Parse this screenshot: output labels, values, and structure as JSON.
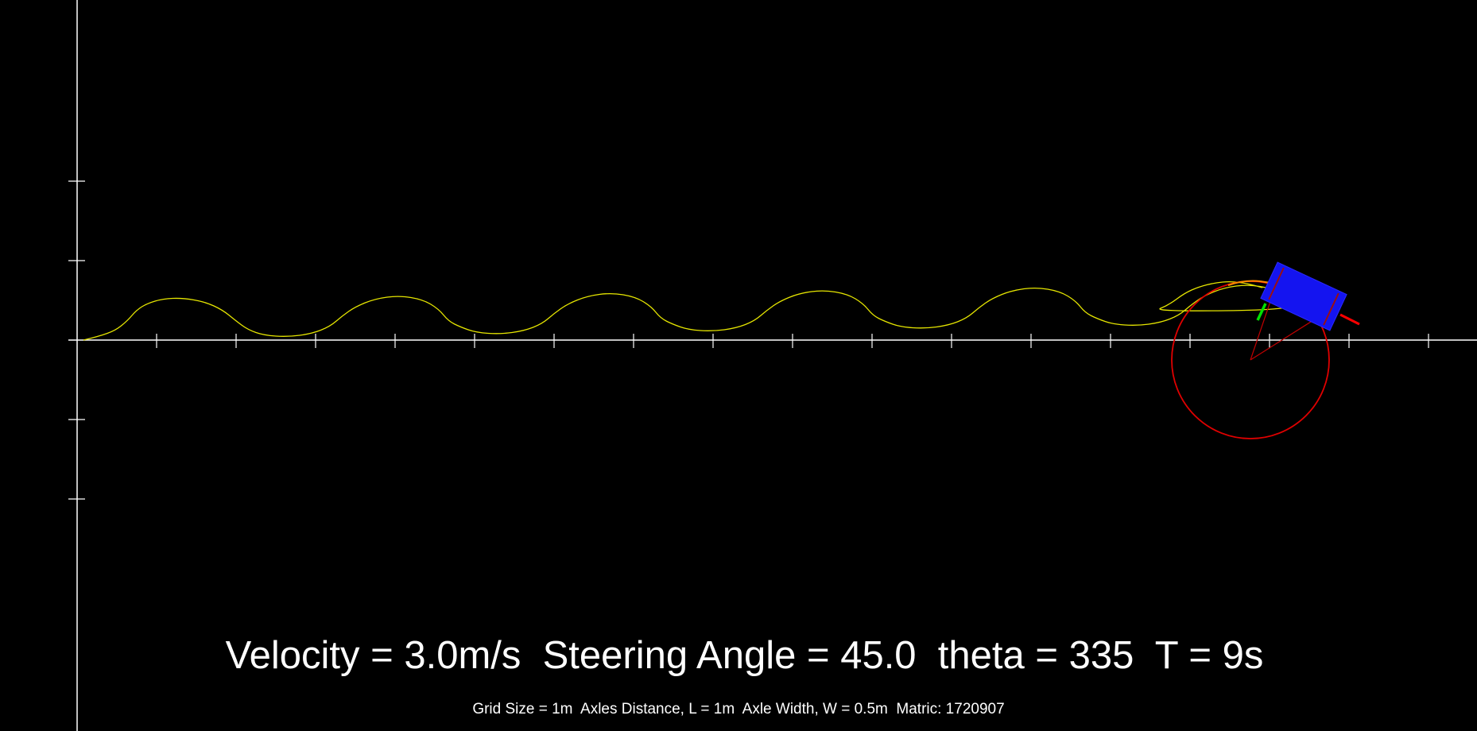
{
  "status": {
    "main_text": "Velocity = 3.0m/s  Steering Angle = 45.0  theta = 335  T = 9s",
    "info_text": "Grid Size = 1m  Axles Distance, L = 1m  Axle Width, W = 0.5m  Matric: 1720907"
  },
  "simulation": {
    "velocity_mps": 3.0,
    "steering_angle_deg": 45.0,
    "theta_deg": 335,
    "time_s": 9,
    "grid_size_m": 1,
    "axles_distance_m": 1,
    "axle_width_m": 0.5
  },
  "colors": {
    "background": "#000000",
    "axes": "#ffffff",
    "trail": "#e6e600",
    "turning_circle": "#e00000",
    "vehicle_body": "#1414f0",
    "heading_indicator": "#00e000",
    "text": "#ffffff"
  }
}
